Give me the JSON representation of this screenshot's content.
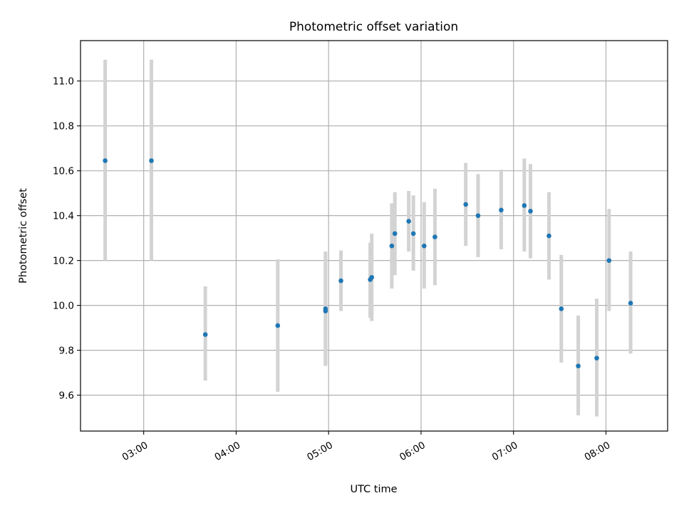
{
  "chart_data": {
    "type": "scatter",
    "title": "Photometric offset variation",
    "xlabel": "UTC time",
    "ylabel": "Photometric offset",
    "x_tick_labels": [
      "03:00",
      "04:00",
      "05:00",
      "06:00",
      "07:00",
      "08:00"
    ],
    "x_tick_values": [
      "03:00",
      "04:00",
      "05:00",
      "06:00",
      "07:00",
      "08:00"
    ],
    "y_tick_labels": [
      "9.6",
      "9.8",
      "10.0",
      "10.2",
      "10.4",
      "10.6",
      "10.8",
      "11.0"
    ],
    "y_tick_values": [
      9.6,
      9.8,
      10.0,
      10.2,
      10.4,
      10.6,
      10.8,
      11.0
    ],
    "xlim": [
      "02:19",
      "08:40"
    ],
    "ylim": [
      9.44,
      11.18
    ],
    "grid": true,
    "marker_color": "#1f77b4",
    "errorbar_color": "#d3d3d3",
    "points": [
      {
        "x": "02:35",
        "y": 10.645,
        "ylo": 10.2,
        "yhi": 11.095
      },
      {
        "x": "03:05",
        "y": 10.645,
        "ylo": 10.2,
        "yhi": 11.095
      },
      {
        "x": "03:40",
        "y": 9.87,
        "ylo": 9.665,
        "yhi": 10.085
      },
      {
        "x": "04:27",
        "y": 9.91,
        "ylo": 9.615,
        "yhi": 10.205
      },
      {
        "x": "04:58",
        "y": 9.975,
        "ylo": 9.73,
        "yhi": 10.22
      },
      {
        "x": "04:58",
        "y": 9.985,
        "ylo": 9.745,
        "yhi": 10.24
      },
      {
        "x": "05:08",
        "y": 10.11,
        "ylo": 9.975,
        "yhi": 10.245
      },
      {
        "x": "05:27",
        "y": 10.115,
        "ylo": 9.945,
        "yhi": 10.28
      },
      {
        "x": "05:28",
        "y": 10.125,
        "ylo": 9.93,
        "yhi": 10.32
      },
      {
        "x": "05:41",
        "y": 10.265,
        "ylo": 10.075,
        "yhi": 10.455
      },
      {
        "x": "05:43",
        "y": 10.32,
        "ylo": 10.135,
        "yhi": 10.505
      },
      {
        "x": "05:52",
        "y": 10.375,
        "ylo": 10.24,
        "yhi": 10.51
      },
      {
        "x": "05:55",
        "y": 10.32,
        "ylo": 10.155,
        "yhi": 10.49
      },
      {
        "x": "06:02",
        "y": 10.265,
        "ylo": 10.075,
        "yhi": 10.46
      },
      {
        "x": "06:09",
        "y": 10.305,
        "ylo": 10.09,
        "yhi": 10.52
      },
      {
        "x": "06:29",
        "y": 10.45,
        "ylo": 10.265,
        "yhi": 10.635
      },
      {
        "x": "06:37",
        "y": 10.4,
        "ylo": 10.215,
        "yhi": 10.585
      },
      {
        "x": "06:52",
        "y": 10.425,
        "ylo": 10.25,
        "yhi": 10.605
      },
      {
        "x": "07:07",
        "y": 10.445,
        "ylo": 10.24,
        "yhi": 10.655
      },
      {
        "x": "07:11",
        "y": 10.42,
        "ylo": 10.21,
        "yhi": 10.63
      },
      {
        "x": "07:23",
        "y": 10.31,
        "ylo": 10.115,
        "yhi": 10.505
      },
      {
        "x": "07:31",
        "y": 9.985,
        "ylo": 9.745,
        "yhi": 10.225
      },
      {
        "x": "07:42",
        "y": 9.73,
        "ylo": 9.51,
        "yhi": 9.955
      },
      {
        "x": "07:54",
        "y": 9.765,
        "ylo": 9.505,
        "yhi": 10.03
      },
      {
        "x": "08:02",
        "y": 10.2,
        "ylo": 9.975,
        "yhi": 10.43
      },
      {
        "x": "08:16",
        "y": 10.01,
        "ylo": 9.785,
        "yhi": 10.24
      }
    ]
  }
}
